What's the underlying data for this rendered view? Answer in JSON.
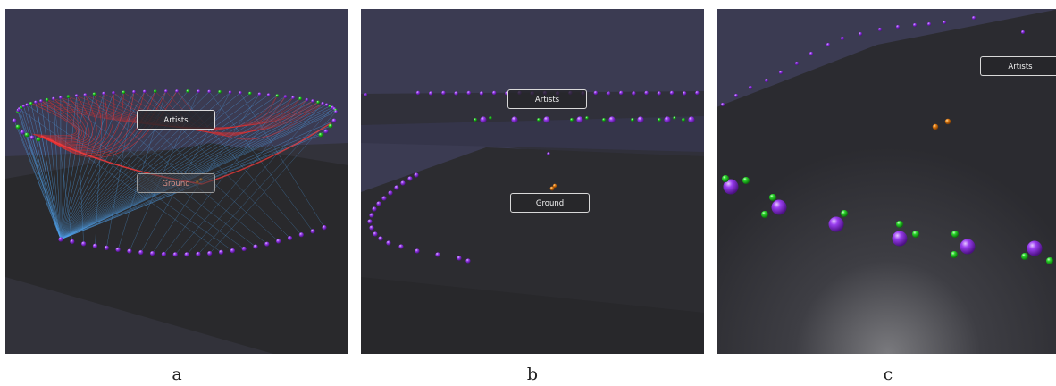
{
  "panels": [
    {
      "id": "a",
      "caption": "a",
      "labels": {
        "artists": "Artists",
        "ground": "Ground"
      }
    },
    {
      "id": "b",
      "caption": "b",
      "labels": {
        "artists": "Artists",
        "ground": "Ground"
      }
    },
    {
      "id": "c",
      "caption": "c",
      "labels": {
        "artists": "Artists"
      }
    }
  ],
  "colors": {
    "background": "#3a3a50",
    "floor": "#2b2b2f",
    "artist_node": "#8a2be2",
    "satellite_node": "#22c922",
    "ground_node": "#e07b12",
    "edge_blue": "#4f9fe8",
    "edge_red": "#e23030"
  }
}
